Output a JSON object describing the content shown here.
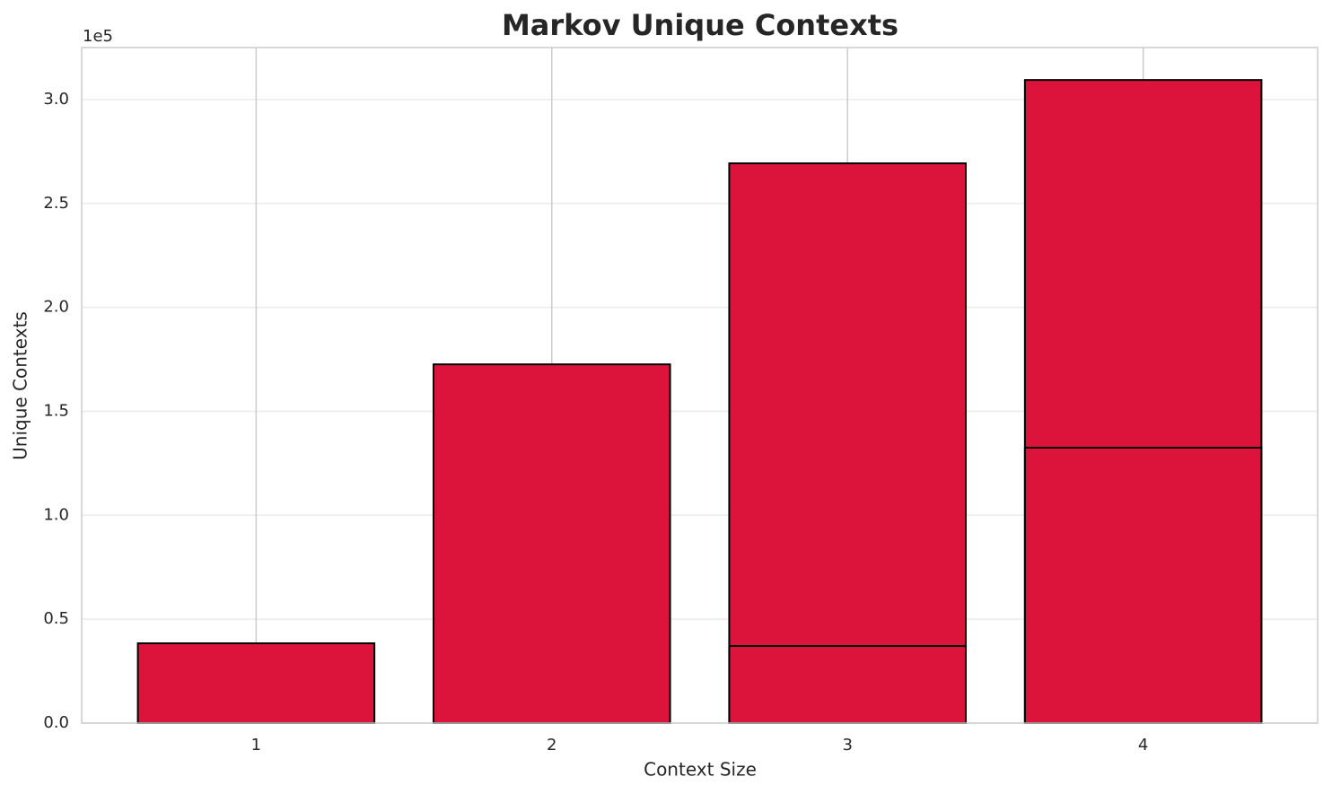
{
  "chart_data": {
    "type": "bar",
    "title": "Markov Unique Contexts",
    "x_label": "Context Size",
    "y_label": "Unique Contexts",
    "y_offset_label": "1e5",
    "x": [
      1,
      2,
      3,
      3,
      4,
      4
    ],
    "values": [
      38400,
      172600,
      269300,
      37100,
      309400,
      132500
    ],
    "bar_width": 0.8,
    "color": "#dc143c",
    "edge_color": "#000000",
    "xlim": [
      0.41,
      4.59
    ],
    "xticks": [
      1,
      2,
      3,
      4
    ],
    "ylim": [
      0,
      325000
    ],
    "yticks": [
      {
        "value": 0,
        "label": "0.0"
      },
      {
        "value": 50000,
        "label": "0.5"
      },
      {
        "value": 100000,
        "label": "1.0"
      },
      {
        "value": 150000,
        "label": "1.5"
      },
      {
        "value": 200000,
        "label": "2.0"
      },
      {
        "value": 250000,
        "label": "2.5"
      },
      {
        "value": 300000,
        "label": "3.0"
      }
    ],
    "grid": true
  }
}
